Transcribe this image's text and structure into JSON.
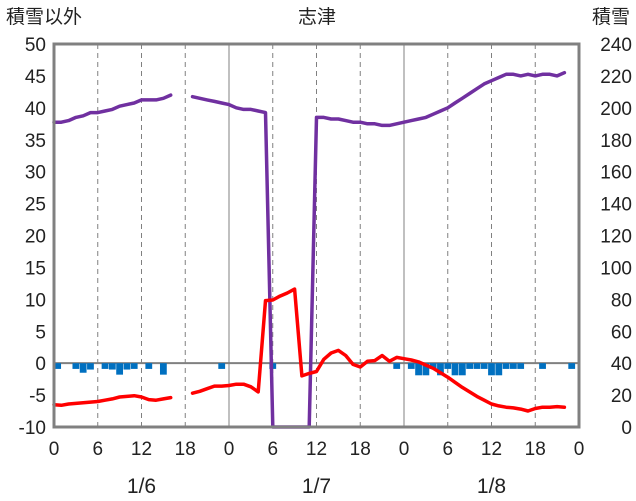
{
  "chart_data": {
    "type": "line",
    "title": "志津",
    "left_axis_label": "積雪以外",
    "right_axis_label": "積雪",
    "left_ylim": [
      -10,
      50
    ],
    "left_ticks": [
      "50",
      "45",
      "40",
      "35",
      "30",
      "25",
      "20",
      "15",
      "10",
      "5",
      "0",
      "-5",
      "-10"
    ],
    "right_ylim": [
      0,
      240
    ],
    "right_ticks": [
      "240",
      "220",
      "200",
      "180",
      "160",
      "140",
      "120",
      "100",
      "80",
      "60",
      "40",
      "20",
      "0"
    ],
    "x_range_hours": [
      0,
      72
    ],
    "x_tick_labels": [
      "0",
      "6",
      "12",
      "18",
      "0",
      "6",
      "12",
      "18",
      "0",
      "6",
      "12",
      "18",
      "0"
    ],
    "date_labels": [
      "1/6",
      "1/7",
      "1/8"
    ],
    "grid": true,
    "colors": {
      "snow_depth": "#7030a0",
      "temperature": "#ff0000",
      "precipitation": "#0070c0",
      "axes": "#808080",
      "grid": "#808080"
    },
    "series": [
      {
        "key": "snow_depth",
        "axis": "right",
        "points": [
          [
            0,
            191
          ],
          [
            1,
            191
          ],
          [
            2,
            192
          ],
          [
            3,
            194
          ],
          [
            4,
            195
          ],
          [
            5,
            197
          ],
          [
            6,
            197
          ],
          [
            7,
            198
          ],
          [
            8,
            199
          ],
          [
            9,
            201
          ],
          [
            10,
            202
          ],
          [
            11,
            203
          ],
          [
            12,
            205
          ],
          [
            13,
            205
          ],
          [
            14,
            205
          ],
          [
            15,
            206
          ],
          [
            16,
            208
          ],
          null,
          [
            19,
            207
          ],
          [
            20,
            206
          ],
          [
            21,
            205
          ],
          [
            22,
            204
          ],
          [
            23,
            203
          ],
          [
            24,
            202
          ],
          [
            25,
            200
          ],
          [
            26,
            199
          ],
          [
            27,
            199
          ],
          [
            28,
            198
          ],
          [
            29,
            197
          ],
          [
            30,
            0
          ],
          [
            31,
            0
          ],
          [
            32,
            0
          ],
          [
            33,
            0
          ],
          [
            34,
            0
          ],
          [
            35,
            0
          ],
          [
            36,
            194
          ],
          [
            37,
            194
          ],
          [
            38,
            193
          ],
          [
            39,
            193
          ],
          [
            40,
            192
          ],
          [
            41,
            191
          ],
          [
            42,
            191
          ],
          [
            43,
            190
          ],
          [
            44,
            190
          ],
          [
            45,
            189
          ],
          [
            46,
            189
          ],
          [
            47,
            190
          ],
          [
            48,
            191
          ],
          [
            49,
            192
          ],
          [
            50,
            193
          ],
          [
            51,
            194
          ],
          [
            52,
            196
          ],
          [
            53,
            198
          ],
          [
            54,
            200
          ],
          [
            55,
            203
          ],
          [
            56,
            206
          ],
          [
            57,
            209
          ],
          [
            58,
            212
          ],
          [
            59,
            215
          ],
          [
            60,
            217
          ],
          [
            61,
            219
          ],
          [
            62,
            221
          ],
          [
            63,
            221
          ],
          [
            64,
            220
          ],
          [
            65,
            221
          ],
          [
            66,
            220
          ],
          [
            67,
            221
          ],
          [
            68,
            221
          ],
          [
            69,
            220
          ],
          [
            70,
            222
          ]
        ]
      },
      {
        "key": "temperature",
        "axis": "left",
        "points": [
          [
            0,
            -6.5
          ],
          [
            1,
            -6.6
          ],
          [
            2,
            -6.4
          ],
          [
            3,
            -6.3
          ],
          [
            4,
            -6.2
          ],
          [
            5,
            -6.1
          ],
          [
            6,
            -6.0
          ],
          [
            7,
            -5.8
          ],
          [
            8,
            -5.6
          ],
          [
            9,
            -5.3
          ],
          [
            10,
            -5.2
          ],
          [
            11,
            -5.1
          ],
          [
            12,
            -5.3
          ],
          [
            13,
            -5.7
          ],
          [
            14,
            -5.8
          ],
          [
            15,
            -5.6
          ],
          [
            16,
            -5.4
          ],
          null,
          [
            19,
            -4.7
          ],
          [
            20,
            -4.4
          ],
          [
            21,
            -4.0
          ],
          [
            22,
            -3.6
          ],
          [
            23,
            -3.6
          ],
          [
            24,
            -3.5
          ],
          [
            25,
            -3.3
          ],
          [
            26,
            -3.3
          ],
          [
            27,
            -3.7
          ],
          [
            28,
            -4.5
          ],
          [
            29,
            9.8
          ],
          [
            30,
            9.9
          ],
          [
            31,
            10.5
          ],
          [
            32,
            11.0
          ],
          [
            33,
            11.6
          ],
          [
            34,
            -2.0
          ],
          [
            35,
            -1.6
          ],
          [
            36,
            -1.3
          ],
          [
            37,
            0.6
          ],
          [
            38,
            1.6
          ],
          [
            39,
            2.0
          ],
          [
            40,
            1.2
          ],
          [
            41,
            -0.2
          ],
          [
            42,
            -0.6
          ],
          [
            43,
            0.3
          ],
          [
            44,
            0.4
          ],
          [
            45,
            1.2
          ],
          [
            46,
            0.3
          ],
          [
            47,
            0.9
          ],
          [
            48,
            0.7
          ],
          [
            49,
            0.5
          ],
          [
            50,
            0.2
          ],
          [
            51,
            -0.3
          ],
          [
            52,
            -0.8
          ],
          [
            53,
            -1.5
          ],
          [
            54,
            -2.2
          ],
          [
            55,
            -3.0
          ],
          [
            56,
            -3.8
          ],
          [
            57,
            -4.5
          ],
          [
            58,
            -5.2
          ],
          [
            59,
            -5.8
          ],
          [
            60,
            -6.4
          ],
          [
            61,
            -6.7
          ],
          [
            62,
            -6.9
          ],
          [
            63,
            -7.0
          ],
          [
            64,
            -7.2
          ],
          [
            65,
            -7.5
          ],
          [
            66,
            -7.1
          ],
          [
            67,
            -6.9
          ],
          [
            68,
            -6.9
          ],
          [
            69,
            -6.8
          ],
          [
            70,
            -6.9
          ]
        ]
      },
      {
        "key": "precipitation",
        "axis": "left",
        "type": "bar",
        "bars": [
          [
            0.5,
            -0.9
          ],
          [
            3,
            -0.9
          ],
          [
            4,
            -1.5
          ],
          [
            5,
            -1.0
          ],
          [
            7,
            -0.9
          ],
          [
            8,
            -1.0
          ],
          [
            9,
            -1.8
          ],
          [
            10,
            -1.0
          ],
          [
            11,
            -0.9
          ],
          [
            13,
            -0.9
          ],
          [
            15,
            -1.8
          ],
          [
            23,
            -0.9
          ],
          [
            30,
            -0.9
          ],
          [
            47,
            -0.9
          ],
          [
            49,
            -0.9
          ],
          [
            50,
            -1.9
          ],
          [
            51,
            -1.9
          ],
          [
            52,
            -0.9
          ],
          [
            53,
            -1.9
          ],
          [
            54,
            -0.9
          ],
          [
            55,
            -1.9
          ],
          [
            56,
            -1.9
          ],
          [
            57,
            -0.9
          ],
          [
            58,
            -0.9
          ],
          [
            59,
            -0.9
          ],
          [
            60,
            -1.9
          ],
          [
            61,
            -1.9
          ],
          [
            62,
            -0.9
          ],
          [
            63,
            -0.9
          ],
          [
            64,
            -0.9
          ],
          [
            67,
            -0.9
          ],
          [
            71,
            -0.9
          ]
        ]
      }
    ]
  }
}
